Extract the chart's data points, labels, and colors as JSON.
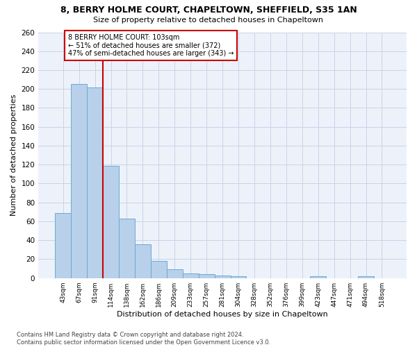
{
  "title_line1": "8, BERRY HOLME COURT, CHAPELTOWN, SHEFFIELD, S35 1AN",
  "title_line2": "Size of property relative to detached houses in Chapeltown",
  "xlabel": "Distribution of detached houses by size in Chapeltown",
  "ylabel": "Number of detached properties",
  "categories": [
    "43sqm",
    "67sqm",
    "91sqm",
    "114sqm",
    "138sqm",
    "162sqm",
    "186sqm",
    "209sqm",
    "233sqm",
    "257sqm",
    "281sqm",
    "304sqm",
    "328sqm",
    "352sqm",
    "376sqm",
    "399sqm",
    "423sqm",
    "447sqm",
    "471sqm",
    "494sqm",
    "518sqm"
  ],
  "values": [
    69,
    205,
    202,
    119,
    63,
    36,
    18,
    9,
    5,
    4,
    3,
    2,
    0,
    0,
    0,
    0,
    2,
    0,
    0,
    2,
    0
  ],
  "bar_color": "#b8d0ea",
  "bar_edge_color": "#6aaad4",
  "grid_color": "#c8d4e8",
  "vline_color": "#cc0000",
  "vline_pos": 2.5,
  "annotation_line1": "8 BERRY HOLME COURT: 103sqm",
  "annotation_line2": "← 51% of detached houses are smaller (372)",
  "annotation_line3": "47% of semi-detached houses are larger (343) →",
  "annotation_box_facecolor": "#ffffff",
  "annotation_box_edgecolor": "#cc0000",
  "footer_text": "Contains HM Land Registry data © Crown copyright and database right 2024.\nContains public sector information licensed under the Open Government Licence v3.0.",
  "bg_color": "#edf2fa",
  "ylim": [
    0,
    260
  ],
  "yticks": [
    0,
    20,
    40,
    60,
    80,
    100,
    120,
    140,
    160,
    180,
    200,
    220,
    240,
    260
  ],
  "figsize": [
    6.0,
    5.0
  ],
  "dpi": 100
}
